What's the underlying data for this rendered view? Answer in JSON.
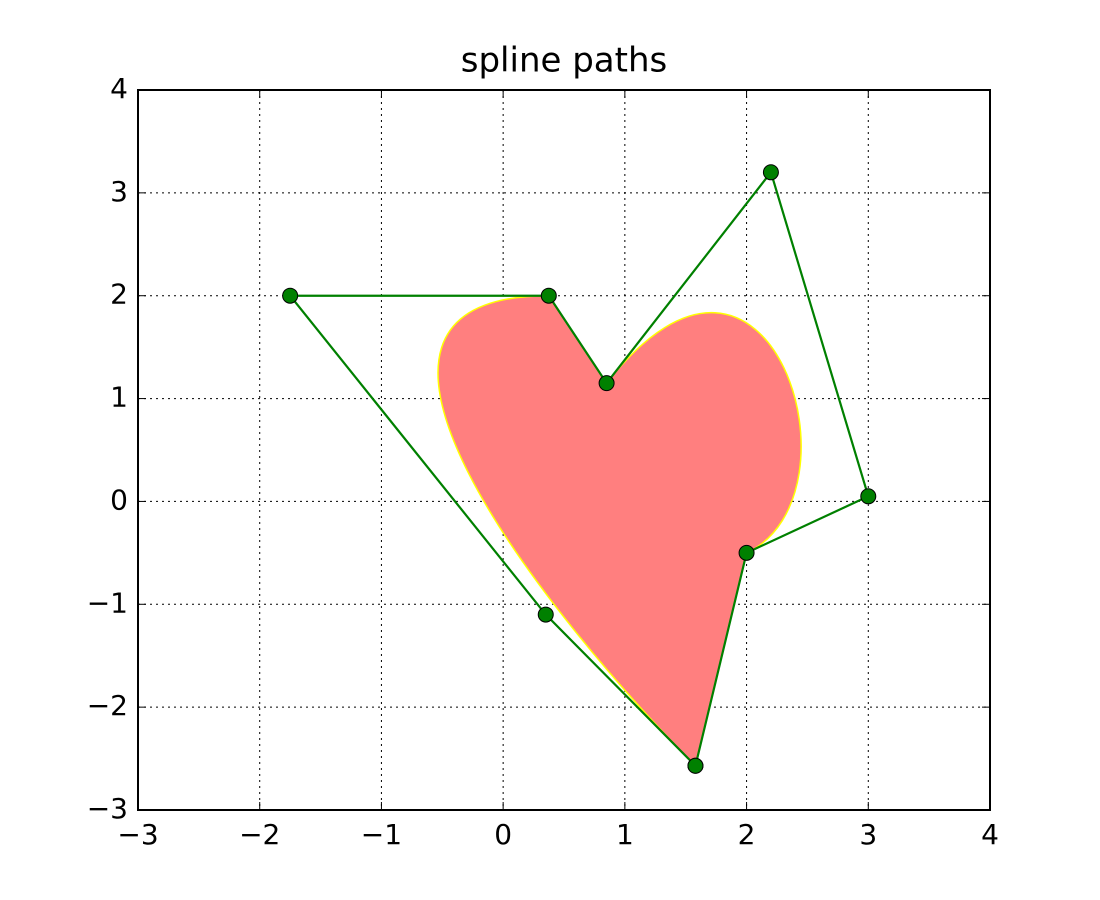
{
  "chart_data": {
    "type": "line",
    "title": "spline paths",
    "x": [
      1.58,
      0.35,
      -1.75,
      0.375,
      0.85,
      2.2,
      3,
      2.0,
      1.58
    ],
    "series": [
      {
        "color": "#008000",
        "values": [
          -2.57,
          -1.1,
          2.0,
          2.0,
          1.15,
          3.2,
          0.05,
          -0.5,
          -2.57
        ]
      }
    ],
    "patch": {
      "color": "#ff7f7f",
      "edgecolor": "#ffff00",
      "codes": [
        "moveto",
        "curve4",
        "curve4",
        "curve4",
        "lineto",
        "curve4",
        "curve4",
        "curve4",
        "closepoly"
      ]
    },
    "xlim": [
      -3,
      4
    ],
    "ylim": [
      -3,
      4
    ],
    "xticks": [
      {
        "value": -3,
        "label": "−3"
      },
      {
        "value": -2,
        "label": "−2"
      },
      {
        "value": -1,
        "label": "−1"
      },
      0,
      1,
      2,
      3,
      4
    ],
    "yticks": [
      {
        "value": -3,
        "label": "−3"
      },
      {
        "value": -2,
        "label": "−2"
      },
      {
        "value": -1,
        "label": "−1"
      },
      0,
      1,
      2,
      3,
      4
    ],
    "grid": true
  }
}
